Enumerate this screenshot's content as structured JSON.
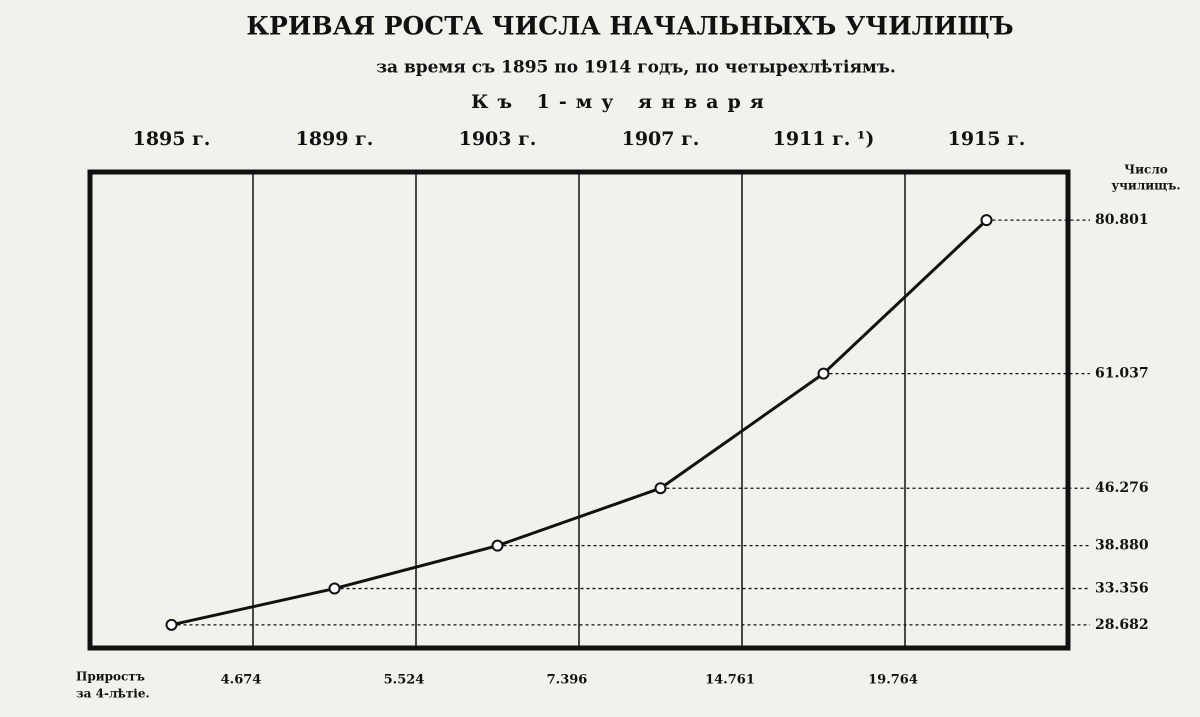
{
  "chart_data": {
    "type": "line",
    "title": "КРИВАЯ РОСТА ЧИСЛА НАЧАЛЬНЫХЪ УЧИЛИЩЪ",
    "subtitle": "за время съ 1895 по 1914 годъ, по четырехлѣтіямъ.",
    "x_caption": "Къ 1-му января",
    "y_label": [
      "Число",
      "училищъ."
    ],
    "increment_caption": [
      "Приростъ",
      "за 4-лѣтіе."
    ],
    "categories": [
      "1895 г.",
      "1899 г.",
      "1903 г.",
      "1907 г.",
      "1911 г. ¹)",
      "1915 г."
    ],
    "values": [
      28682,
      33356,
      38880,
      46276,
      61037,
      80801
    ],
    "value_labels": [
      "28.682",
      "33.356",
      "38.880",
      "46.276",
      "61.037",
      "80.801"
    ],
    "increments": [
      {
        "value": 4674,
        "label": "4.674"
      },
      {
        "value": 5524,
        "label": "5.524"
      },
      {
        "value": 7396,
        "label": "7.396"
      },
      {
        "value": 14761,
        "label": "14.761"
      },
      {
        "value": 19764,
        "label": "19.764"
      }
    ],
    "color": "#111111",
    "ylim": [
      25700,
      87000
    ],
    "grid": true
  }
}
